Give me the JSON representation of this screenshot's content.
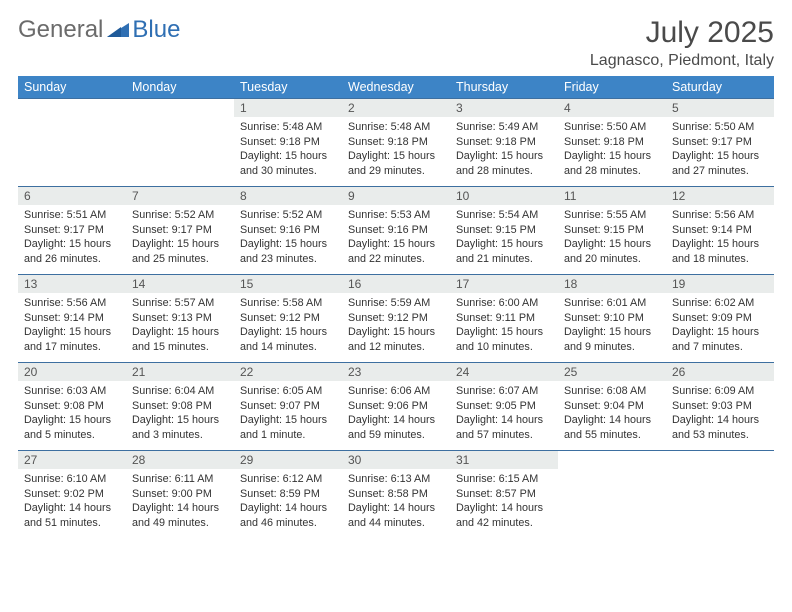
{
  "brand": {
    "part1": "General",
    "part2": "Blue"
  },
  "title": "July 2025",
  "location": "Lagnasco, Piedmont, Italy",
  "colors": {
    "header_bg": "#3d84c6",
    "header_text": "#ffffff",
    "daynum_bg": "#e9eceb",
    "border": "#3d6fa0",
    "brand_gray": "#6b6b6b",
    "brand_blue": "#2f6fb3"
  },
  "day_headers": [
    "Sunday",
    "Monday",
    "Tuesday",
    "Wednesday",
    "Thursday",
    "Friday",
    "Saturday"
  ],
  "weeks": [
    [
      {
        "empty": true
      },
      {
        "empty": true
      },
      {
        "num": "1",
        "sunrise": "Sunrise: 5:48 AM",
        "sunset": "Sunset: 9:18 PM",
        "dl1": "Daylight: 15 hours",
        "dl2": "and 30 minutes."
      },
      {
        "num": "2",
        "sunrise": "Sunrise: 5:48 AM",
        "sunset": "Sunset: 9:18 PM",
        "dl1": "Daylight: 15 hours",
        "dl2": "and 29 minutes."
      },
      {
        "num": "3",
        "sunrise": "Sunrise: 5:49 AM",
        "sunset": "Sunset: 9:18 PM",
        "dl1": "Daylight: 15 hours",
        "dl2": "and 28 minutes."
      },
      {
        "num": "4",
        "sunrise": "Sunrise: 5:50 AM",
        "sunset": "Sunset: 9:18 PM",
        "dl1": "Daylight: 15 hours",
        "dl2": "and 28 minutes."
      },
      {
        "num": "5",
        "sunrise": "Sunrise: 5:50 AM",
        "sunset": "Sunset: 9:17 PM",
        "dl1": "Daylight: 15 hours",
        "dl2": "and 27 minutes."
      }
    ],
    [
      {
        "num": "6",
        "sunrise": "Sunrise: 5:51 AM",
        "sunset": "Sunset: 9:17 PM",
        "dl1": "Daylight: 15 hours",
        "dl2": "and 26 minutes."
      },
      {
        "num": "7",
        "sunrise": "Sunrise: 5:52 AM",
        "sunset": "Sunset: 9:17 PM",
        "dl1": "Daylight: 15 hours",
        "dl2": "and 25 minutes."
      },
      {
        "num": "8",
        "sunrise": "Sunrise: 5:52 AM",
        "sunset": "Sunset: 9:16 PM",
        "dl1": "Daylight: 15 hours",
        "dl2": "and 23 minutes."
      },
      {
        "num": "9",
        "sunrise": "Sunrise: 5:53 AM",
        "sunset": "Sunset: 9:16 PM",
        "dl1": "Daylight: 15 hours",
        "dl2": "and 22 minutes."
      },
      {
        "num": "10",
        "sunrise": "Sunrise: 5:54 AM",
        "sunset": "Sunset: 9:15 PM",
        "dl1": "Daylight: 15 hours",
        "dl2": "and 21 minutes."
      },
      {
        "num": "11",
        "sunrise": "Sunrise: 5:55 AM",
        "sunset": "Sunset: 9:15 PM",
        "dl1": "Daylight: 15 hours",
        "dl2": "and 20 minutes."
      },
      {
        "num": "12",
        "sunrise": "Sunrise: 5:56 AM",
        "sunset": "Sunset: 9:14 PM",
        "dl1": "Daylight: 15 hours",
        "dl2": "and 18 minutes."
      }
    ],
    [
      {
        "num": "13",
        "sunrise": "Sunrise: 5:56 AM",
        "sunset": "Sunset: 9:14 PM",
        "dl1": "Daylight: 15 hours",
        "dl2": "and 17 minutes."
      },
      {
        "num": "14",
        "sunrise": "Sunrise: 5:57 AM",
        "sunset": "Sunset: 9:13 PM",
        "dl1": "Daylight: 15 hours",
        "dl2": "and 15 minutes."
      },
      {
        "num": "15",
        "sunrise": "Sunrise: 5:58 AM",
        "sunset": "Sunset: 9:12 PM",
        "dl1": "Daylight: 15 hours",
        "dl2": "and 14 minutes."
      },
      {
        "num": "16",
        "sunrise": "Sunrise: 5:59 AM",
        "sunset": "Sunset: 9:12 PM",
        "dl1": "Daylight: 15 hours",
        "dl2": "and 12 minutes."
      },
      {
        "num": "17",
        "sunrise": "Sunrise: 6:00 AM",
        "sunset": "Sunset: 9:11 PM",
        "dl1": "Daylight: 15 hours",
        "dl2": "and 10 minutes."
      },
      {
        "num": "18",
        "sunrise": "Sunrise: 6:01 AM",
        "sunset": "Sunset: 9:10 PM",
        "dl1": "Daylight: 15 hours",
        "dl2": "and 9 minutes."
      },
      {
        "num": "19",
        "sunrise": "Sunrise: 6:02 AM",
        "sunset": "Sunset: 9:09 PM",
        "dl1": "Daylight: 15 hours",
        "dl2": "and 7 minutes."
      }
    ],
    [
      {
        "num": "20",
        "sunrise": "Sunrise: 6:03 AM",
        "sunset": "Sunset: 9:08 PM",
        "dl1": "Daylight: 15 hours",
        "dl2": "and 5 minutes."
      },
      {
        "num": "21",
        "sunrise": "Sunrise: 6:04 AM",
        "sunset": "Sunset: 9:08 PM",
        "dl1": "Daylight: 15 hours",
        "dl2": "and 3 minutes."
      },
      {
        "num": "22",
        "sunrise": "Sunrise: 6:05 AM",
        "sunset": "Sunset: 9:07 PM",
        "dl1": "Daylight: 15 hours",
        "dl2": "and 1 minute."
      },
      {
        "num": "23",
        "sunrise": "Sunrise: 6:06 AM",
        "sunset": "Sunset: 9:06 PM",
        "dl1": "Daylight: 14 hours",
        "dl2": "and 59 minutes."
      },
      {
        "num": "24",
        "sunrise": "Sunrise: 6:07 AM",
        "sunset": "Sunset: 9:05 PM",
        "dl1": "Daylight: 14 hours",
        "dl2": "and 57 minutes."
      },
      {
        "num": "25",
        "sunrise": "Sunrise: 6:08 AM",
        "sunset": "Sunset: 9:04 PM",
        "dl1": "Daylight: 14 hours",
        "dl2": "and 55 minutes."
      },
      {
        "num": "26",
        "sunrise": "Sunrise: 6:09 AM",
        "sunset": "Sunset: 9:03 PM",
        "dl1": "Daylight: 14 hours",
        "dl2": "and 53 minutes."
      }
    ],
    [
      {
        "num": "27",
        "sunrise": "Sunrise: 6:10 AM",
        "sunset": "Sunset: 9:02 PM",
        "dl1": "Daylight: 14 hours",
        "dl2": "and 51 minutes."
      },
      {
        "num": "28",
        "sunrise": "Sunrise: 6:11 AM",
        "sunset": "Sunset: 9:00 PM",
        "dl1": "Daylight: 14 hours",
        "dl2": "and 49 minutes."
      },
      {
        "num": "29",
        "sunrise": "Sunrise: 6:12 AM",
        "sunset": "Sunset: 8:59 PM",
        "dl1": "Daylight: 14 hours",
        "dl2": "and 46 minutes."
      },
      {
        "num": "30",
        "sunrise": "Sunrise: 6:13 AM",
        "sunset": "Sunset: 8:58 PM",
        "dl1": "Daylight: 14 hours",
        "dl2": "and 44 minutes."
      },
      {
        "num": "31",
        "sunrise": "Sunrise: 6:15 AM",
        "sunset": "Sunset: 8:57 PM",
        "dl1": "Daylight: 14 hours",
        "dl2": "and 42 minutes."
      },
      {
        "empty": true
      },
      {
        "empty": true
      }
    ]
  ]
}
